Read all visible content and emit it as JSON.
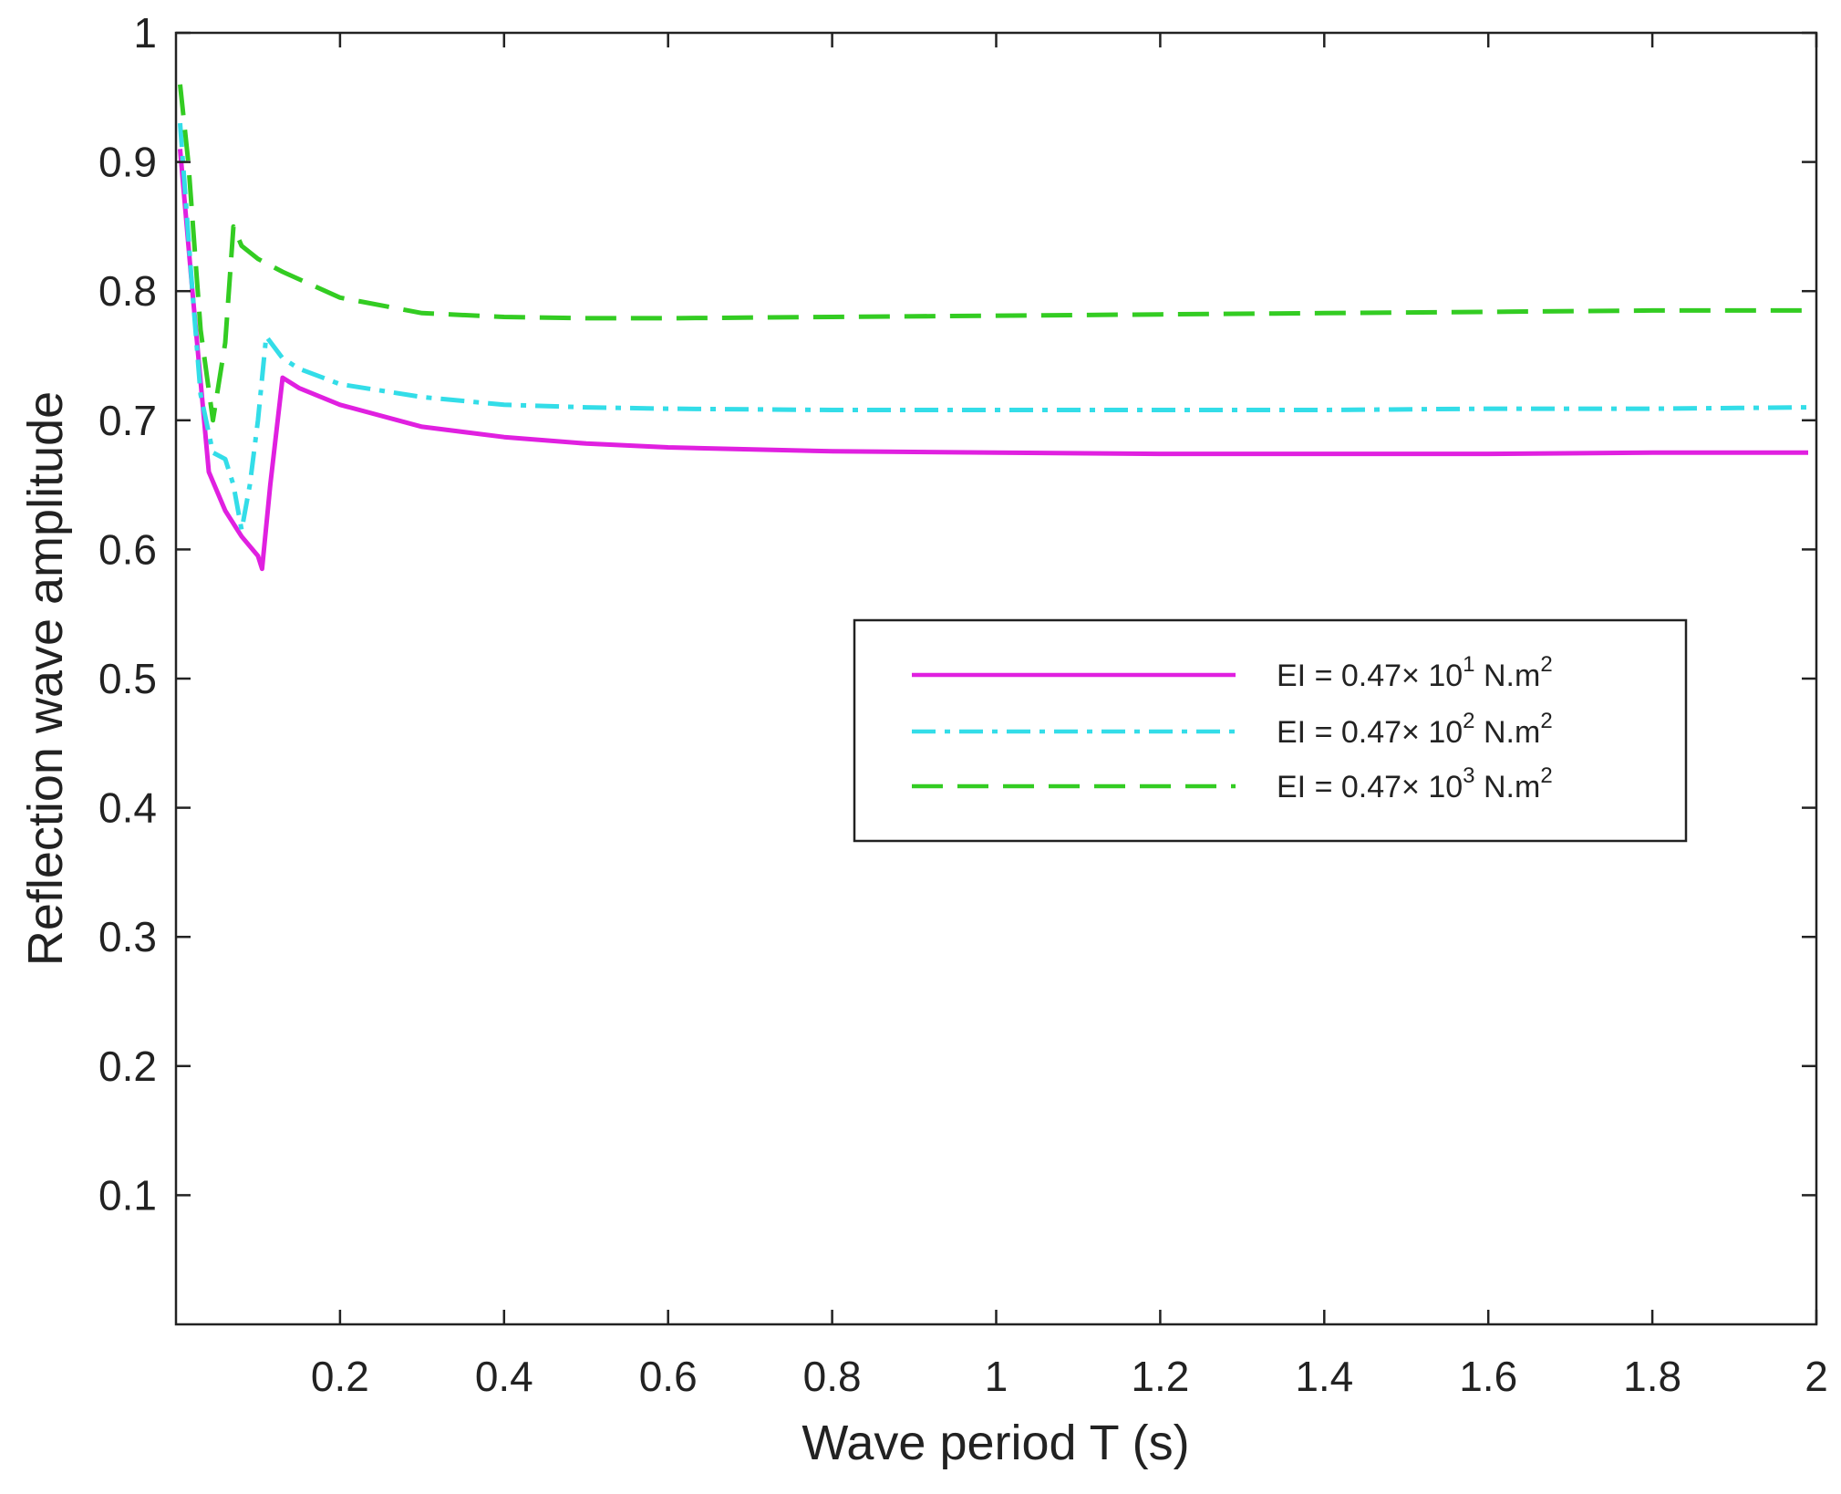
{
  "chart_data": {
    "type": "line",
    "title": "",
    "xlabel": "Wave period T (s)",
    "ylabel": "Reflection wave amplitude",
    "xlim": [
      0,
      2
    ],
    "ylim": [
      0,
      1
    ],
    "xticks": [
      0.2,
      0.4,
      0.6,
      0.8,
      1,
      1.2,
      1.4,
      1.6,
      1.8,
      2
    ],
    "xtick_labels": [
      "0.2",
      "0.4",
      "0.6",
      "0.8",
      "1",
      "1.2",
      "1.4",
      "1.6",
      "1.8",
      "2"
    ],
    "yticks": [
      0.1,
      0.2,
      0.3,
      0.4,
      0.5,
      0.6,
      0.7,
      0.8,
      0.9,
      1
    ],
    "ytick_labels": [
      "0.1",
      "0.2",
      "0.3",
      "0.4",
      "0.5",
      "0.6",
      "0.7",
      "0.8",
      "0.9",
      "1"
    ],
    "grid": false,
    "legend_position": "center-right",
    "series": [
      {
        "name": "EI = 0.47× 10¹ N.m²",
        "legend": {
          "prefix": "EI = 0.47× 10",
          "exp": "1",
          "mid": " N.m",
          "exp2": "2"
        },
        "color": "#e020e0",
        "dash": "solid",
        "x": [
          0.005,
          0.02,
          0.04,
          0.06,
          0.08,
          0.1,
          0.105,
          0.115,
          0.13,
          0.15,
          0.2,
          0.3,
          0.4,
          0.5,
          0.6,
          0.8,
          1.0,
          1.2,
          1.4,
          1.6,
          1.8,
          1.99
        ],
        "y": [
          0.91,
          0.8,
          0.66,
          0.63,
          0.61,
          0.595,
          0.585,
          0.65,
          0.733,
          0.725,
          0.712,
          0.695,
          0.687,
          0.682,
          0.679,
          0.676,
          0.675,
          0.674,
          0.674,
          0.674,
          0.675,
          0.675
        ]
      },
      {
        "name": "EI = 0.47× 10² N.m²",
        "legend": {
          "prefix": "EI = 0.47× 10",
          "exp": "2",
          "mid": " N.m",
          "exp2": "2"
        },
        "color": "#33dde8",
        "dash": "dashdot",
        "x": [
          0.005,
          0.02,
          0.03,
          0.045,
          0.06,
          0.07,
          0.08,
          0.09,
          0.1,
          0.11,
          0.13,
          0.15,
          0.2,
          0.3,
          0.4,
          0.5,
          0.6,
          0.8,
          1.0,
          1.2,
          1.4,
          1.6,
          1.8,
          1.99
        ],
        "y": [
          0.93,
          0.8,
          0.72,
          0.675,
          0.67,
          0.65,
          0.615,
          0.65,
          0.7,
          0.765,
          0.748,
          0.74,
          0.728,
          0.718,
          0.712,
          0.71,
          0.709,
          0.708,
          0.708,
          0.708,
          0.708,
          0.709,
          0.709,
          0.71
        ]
      },
      {
        "name": "EI = 0.47× 10³ N.m²",
        "legend": {
          "prefix": "EI = 0.47× 10",
          "exp": "3",
          "mid": " N.m",
          "exp2": "2"
        },
        "color": "#33cc22",
        "dash": "dashed",
        "x": [
          0.005,
          0.015,
          0.03,
          0.045,
          0.06,
          0.07,
          0.08,
          0.1,
          0.13,
          0.2,
          0.3,
          0.4,
          0.5,
          0.6,
          0.8,
          1.0,
          1.2,
          1.4,
          1.6,
          1.8,
          1.99
        ],
        "y": [
          0.96,
          0.9,
          0.77,
          0.7,
          0.76,
          0.85,
          0.835,
          0.825,
          0.815,
          0.795,
          0.783,
          0.78,
          0.779,
          0.779,
          0.78,
          0.781,
          0.782,
          0.783,
          0.784,
          0.785,
          0.785
        ]
      }
    ]
  }
}
